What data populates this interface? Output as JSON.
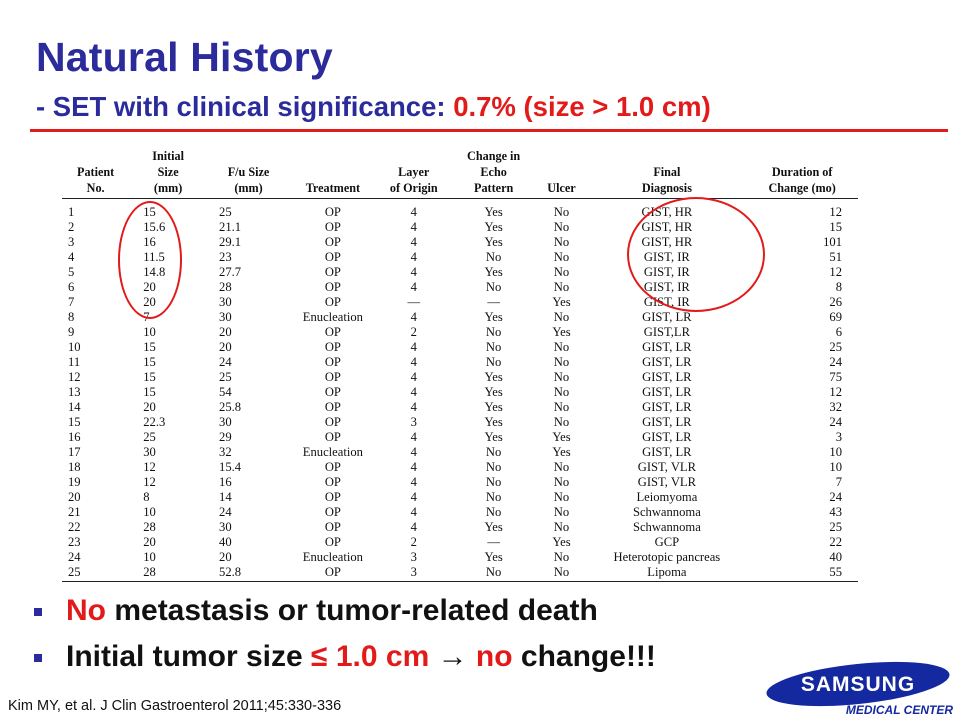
{
  "slide": {
    "title": "Natural History",
    "subtitle_prefix": "- SET with clinical significance: ",
    "subtitle_highlight": "0.7% (size > 1.0 cm)"
  },
  "table": {
    "headers": {
      "patient": [
        "Patient",
        "No."
      ],
      "initial": [
        "Initial",
        "Size",
        "(mm)"
      ],
      "fu": [
        "F/u Size",
        "(mm)"
      ],
      "treatment": [
        "Treatment"
      ],
      "layer": [
        "Layer",
        "of Origin"
      ],
      "echo": [
        "Change in",
        "Echo",
        "Pattern"
      ],
      "ulcer": [
        "Ulcer"
      ],
      "final": [
        "Final",
        "Diagnosis"
      ],
      "duration": [
        "Duration of",
        "Change (mo)"
      ]
    },
    "rows": [
      [
        "1",
        "15",
        "25",
        "OP",
        "4",
        "Yes",
        "No",
        "GIST, HR",
        "12"
      ],
      [
        "2",
        "15.6",
        "21.1",
        "OP",
        "4",
        "Yes",
        "No",
        "GIST, HR",
        "15"
      ],
      [
        "3",
        "16",
        "29.1",
        "OP",
        "4",
        "Yes",
        "No",
        "GIST, HR",
        "101"
      ],
      [
        "4",
        "11.5",
        "23",
        "OP",
        "4",
        "No",
        "No",
        "GIST, IR",
        "51"
      ],
      [
        "5",
        "14.8",
        "27.7",
        "OP",
        "4",
        "Yes",
        "No",
        "GIST, IR",
        "12"
      ],
      [
        "6",
        "20",
        "28",
        "OP",
        "4",
        "No",
        "No",
        "GIST, IR",
        "8"
      ],
      [
        "7",
        "20",
        "30",
        "OP",
        "—",
        "—",
        "Yes",
        "GIST, IR",
        "26"
      ],
      [
        "8",
        "7",
        "30",
        "Enucleation",
        "4",
        "Yes",
        "No",
        "GIST, LR",
        "69"
      ],
      [
        "9",
        "10",
        "20",
        "OP",
        "2",
        "No",
        "Yes",
        "GIST,LR",
        "6"
      ],
      [
        "10",
        "15",
        "20",
        "OP",
        "4",
        "No",
        "No",
        "GIST, LR",
        "25"
      ],
      [
        "11",
        "15",
        "24",
        "OP",
        "4",
        "No",
        "No",
        "GIST, LR",
        "24"
      ],
      [
        "12",
        "15",
        "25",
        "OP",
        "4",
        "Yes",
        "No",
        "GIST, LR",
        "75"
      ],
      [
        "13",
        "15",
        "54",
        "OP",
        "4",
        "Yes",
        "No",
        "GIST, LR",
        "12"
      ],
      [
        "14",
        "20",
        "25.8",
        "OP",
        "4",
        "Yes",
        "No",
        "GIST, LR",
        "32"
      ],
      [
        "15",
        "22.3",
        "30",
        "OP",
        "3",
        "Yes",
        "No",
        "GIST, LR",
        "24"
      ],
      [
        "16",
        "25",
        "29",
        "OP",
        "4",
        "Yes",
        "Yes",
        "GIST, LR",
        "3"
      ],
      [
        "17",
        "30",
        "32",
        "Enucleation",
        "4",
        "No",
        "Yes",
        "GIST, LR",
        "10"
      ],
      [
        "18",
        "12",
        "15.4",
        "OP",
        "4",
        "No",
        "No",
        "GIST, VLR",
        "10"
      ],
      [
        "19",
        "12",
        "16",
        "OP",
        "4",
        "No",
        "No",
        "GIST, VLR",
        "7"
      ],
      [
        "20",
        "8",
        "14",
        "OP",
        "4",
        "No",
        "No",
        "Leiomyoma",
        "24"
      ],
      [
        "21",
        "10",
        "24",
        "OP",
        "4",
        "No",
        "No",
        "Schwannoma",
        "43"
      ],
      [
        "22",
        "28",
        "30",
        "OP",
        "4",
        "Yes",
        "No",
        "Schwannoma",
        "25"
      ],
      [
        "23",
        "20",
        "40",
        "OP",
        "2",
        "—",
        "Yes",
        "GCP",
        "22"
      ],
      [
        "24",
        "10",
        "20",
        "Enucleation",
        "3",
        "Yes",
        "No",
        "Heterotopic pancreas",
        "40"
      ],
      [
        "25",
        "28",
        "52.8",
        "OP",
        "3",
        "No",
        "No",
        "Lipoma",
        "55"
      ]
    ]
  },
  "bullets": [
    {
      "highlight": "No",
      "text": " metastasis or tumor-related death"
    },
    {
      "prefix": "Initial tumor size ",
      "highlight1": "≤ 1.0 cm",
      "arrow": " → ",
      "highlight2": "no",
      "suffix": " change!!!"
    }
  ],
  "citation": "Kim MY, et al. J Clin Gastroenterol 2011;45:330-336",
  "logo": {
    "brand": "SAMSUNG",
    "subtitle": "MEDICAL CENTER",
    "color": "#1428a0"
  },
  "colors": {
    "title": "#2b2b9c",
    "accent": "#e21a1a"
  }
}
